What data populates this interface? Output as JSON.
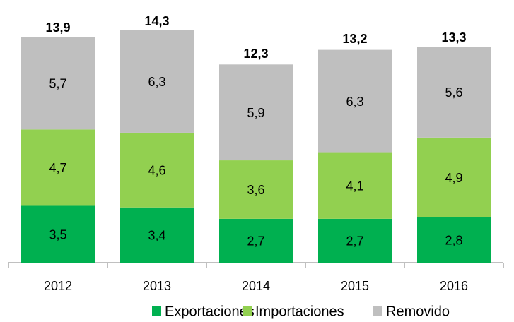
{
  "chart_data": {
    "type": "stacked_bar",
    "categories": [
      "2012",
      "2013",
      "2014",
      "2015",
      "2016"
    ],
    "series": [
      {
        "name": "Exportaciones",
        "color": "#00b050",
        "values": [
          3.5,
          3.4,
          2.7,
          2.7,
          2.8
        ],
        "value_labels": [
          "3,5",
          "3,4",
          "2,7",
          "2,7",
          "2,8"
        ]
      },
      {
        "name": "Importaciones",
        "color": "#92d050",
        "values": [
          4.7,
          4.6,
          3.6,
          4.1,
          4.9
        ],
        "value_labels": [
          "4,7",
          "4,6",
          "3,6",
          "4,1",
          "4,9"
        ]
      },
      {
        "name": "Removido",
        "color": "#bfbfbf",
        "values": [
          5.7,
          6.3,
          5.9,
          6.3,
          5.6
        ],
        "value_labels": [
          "5,7",
          "6,3",
          "5,9",
          "6,3",
          "5,6"
        ]
      }
    ],
    "totals": [
      13.9,
      14.3,
      12.3,
      13.2,
      13.3
    ],
    "total_labels": [
      "13,9",
      "14,3",
      "12,3",
      "13,2",
      "13,3"
    ]
  }
}
